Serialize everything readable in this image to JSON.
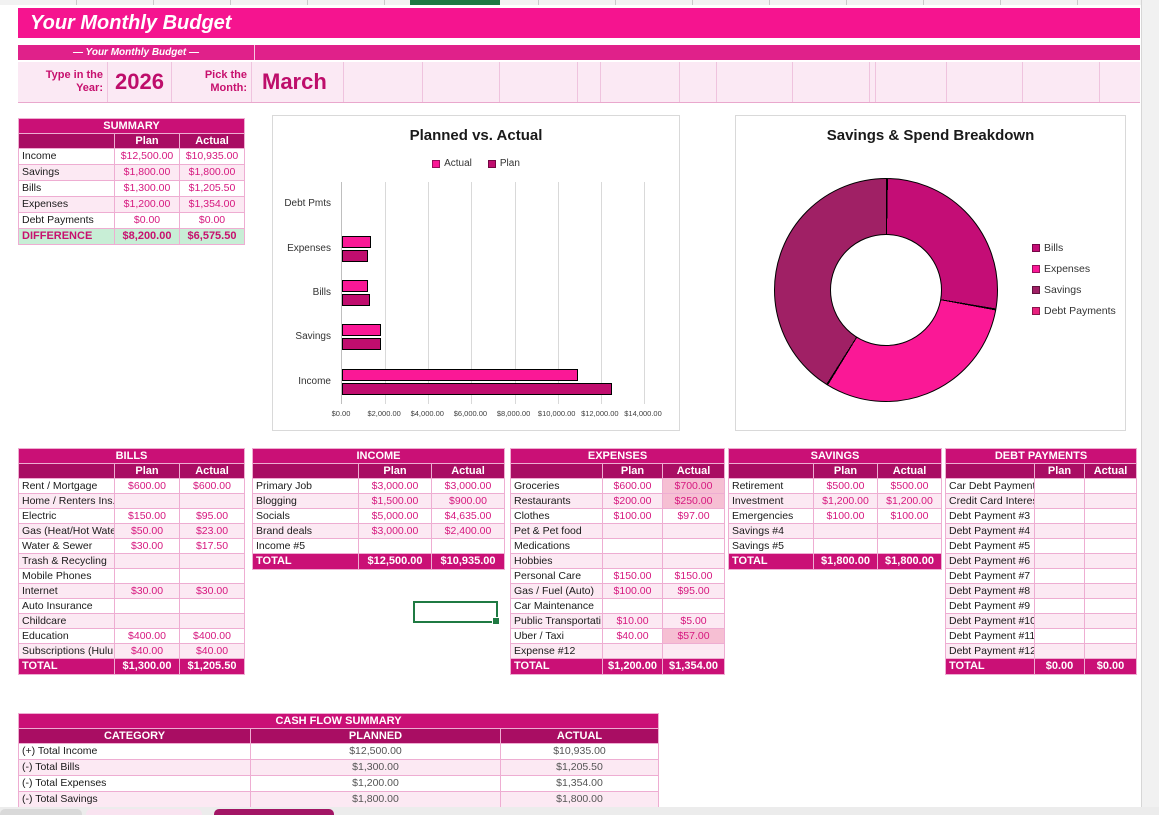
{
  "columns": {
    "plan": "Plan",
    "actual": "Actual"
  },
  "header": {
    "title": "Your Monthly Budget",
    "subtitle": "— Your Monthly Budget —",
    "year_label": "Type in the Year:",
    "year_value": "2026",
    "month_label": "Pick the Month:",
    "month_value": "March"
  },
  "summary": {
    "title": "SUMMARY",
    "rows": [
      {
        "label": "Income",
        "plan": "$12,500.00",
        "actual": "$10,935.00"
      },
      {
        "label": "Savings",
        "plan": "$1,800.00",
        "actual": "$1,800.00"
      },
      {
        "label": "Bills",
        "plan": "$1,300.00",
        "actual": "$1,205.50"
      },
      {
        "label": "Expenses",
        "plan": "$1,200.00",
        "actual": "$1,354.00"
      },
      {
        "label": "Debt Payments",
        "plan": "$0.00",
        "actual": "$0.00"
      }
    ],
    "difference": {
      "label": "DIFFERENCE",
      "plan": "$8,200.00",
      "actual": "$6,575.50"
    }
  },
  "chart_data": [
    {
      "type": "bar",
      "orientation": "horizontal",
      "title": "Planned vs. Actual",
      "categories": [
        "Debt Pmts",
        "Expenses",
        "Bills",
        "Savings",
        "Income"
      ],
      "series": [
        {
          "name": "Actual",
          "color": "#fa1896",
          "values": [
            0,
            1354,
            1205.5,
            1800,
            10935
          ]
        },
        {
          "name": "Plan",
          "color": "#c00d6e",
          "values": [
            0,
            1200,
            1300,
            1800,
            12500
          ]
        }
      ],
      "xlim": [
        0,
        14000
      ],
      "x_ticks": [
        "$0.00",
        "$2,000.00",
        "$4,000.00",
        "$6,000.00",
        "$8,000.00",
        "$10,000.00",
        "$12,000.00",
        "$14,000.00"
      ],
      "legend_position": "top",
      "grid": true
    },
    {
      "type": "pie",
      "donut": true,
      "title": "Savings & Spend Breakdown",
      "labels": [
        "Bills",
        "Expenses",
        "Savings",
        "Debt Payments"
      ],
      "values": [
        1205.5,
        1354,
        1800,
        0
      ],
      "colors": [
        "#c40d76",
        "#fa1896",
        "#a02065",
        "#e8217e"
      ],
      "legend_position": "right"
    }
  ],
  "tables": {
    "bills": {
      "title": "BILLS",
      "rows": [
        {
          "label": "Rent / Mortgage",
          "plan": "$600.00",
          "actual": "$600.00"
        },
        {
          "label": "Home / Renters Ins.",
          "plan": "",
          "actual": ""
        },
        {
          "label": "Electric",
          "plan": "$150.00",
          "actual": "$95.00"
        },
        {
          "label": "Gas (Heat/Hot Wate",
          "plan": "$50.00",
          "actual": "$23.00"
        },
        {
          "label": "Water & Sewer",
          "plan": "$30.00",
          "actual": "$17.50"
        },
        {
          "label": "Trash & Recycling",
          "plan": "",
          "actual": ""
        },
        {
          "label": "Mobile Phones",
          "plan": "",
          "actual": ""
        },
        {
          "label": "Internet",
          "plan": "$30.00",
          "actual": "$30.00"
        },
        {
          "label": "Auto Insurance",
          "plan": "",
          "actual": ""
        },
        {
          "label": "Childcare",
          "plan": "",
          "actual": ""
        },
        {
          "label": "Education",
          "plan": "$400.00",
          "actual": "$400.00"
        },
        {
          "label": "Subscriptions (Hulu",
          "plan": "$40.00",
          "actual": "$40.00"
        }
      ],
      "total": {
        "label": "TOTAL",
        "plan": "$1,300.00",
        "actual": "$1,205.50"
      }
    },
    "income": {
      "title": "INCOME",
      "rows": [
        {
          "label": "Primary Job",
          "plan": "$3,000.00",
          "actual": "$3,000.00"
        },
        {
          "label": "Blogging",
          "plan": "$1,500.00",
          "actual": "$900.00"
        },
        {
          "label": "Socials",
          "plan": "$5,000.00",
          "actual": "$4,635.00"
        },
        {
          "label": "Brand deals",
          "plan": "$3,000.00",
          "actual": "$2,400.00"
        },
        {
          "label": "Income #5",
          "plan": "",
          "actual": ""
        }
      ],
      "total": {
        "label": "TOTAL",
        "plan": "$12,500.00",
        "actual": "$10,935.00"
      }
    },
    "expenses": {
      "title": "EXPENSES",
      "rows": [
        {
          "label": "Groceries",
          "plan": "$600.00",
          "actual": "$700.00",
          "hl": true
        },
        {
          "label": "Restaurants",
          "plan": "$200.00",
          "actual": "$250.00",
          "hl": true
        },
        {
          "label": "Clothes",
          "plan": "$100.00",
          "actual": "$97.00"
        },
        {
          "label": "Pet & Pet food",
          "plan": "",
          "actual": ""
        },
        {
          "label": "Medications",
          "plan": "",
          "actual": ""
        },
        {
          "label": "Hobbies",
          "plan": "",
          "actual": ""
        },
        {
          "label": "Personal Care",
          "plan": "$150.00",
          "actual": "$150.00"
        },
        {
          "label": "Gas / Fuel (Auto)",
          "plan": "$100.00",
          "actual": "$95.00"
        },
        {
          "label": "Car Maintenance",
          "plan": "",
          "actual": ""
        },
        {
          "label": "Public Transportati",
          "plan": "$10.00",
          "actual": "$5.00"
        },
        {
          "label": "Uber / Taxi",
          "plan": "$40.00",
          "actual": "$57.00",
          "hl": true
        },
        {
          "label": "Expense #12",
          "plan": "",
          "actual": ""
        }
      ],
      "total": {
        "label": "TOTAL",
        "plan": "$1,200.00",
        "actual": "$1,354.00"
      }
    },
    "savings": {
      "title": "SAVINGS",
      "rows": [
        {
          "label": "Retirement",
          "plan": "$500.00",
          "actual": "$500.00"
        },
        {
          "label": "Investment",
          "plan": "$1,200.00",
          "actual": "$1,200.00"
        },
        {
          "label": "Emergencies",
          "plan": "$100.00",
          "actual": "$100.00"
        },
        {
          "label": "Savings #4",
          "plan": "",
          "actual": ""
        },
        {
          "label": "Savings #5",
          "plan": "",
          "actual": ""
        }
      ],
      "total": {
        "label": "TOTAL",
        "plan": "$1,800.00",
        "actual": "$1,800.00"
      }
    },
    "debt": {
      "title": "DEBT PAYMENTS",
      "rows": [
        {
          "label": "Car Debt Payment",
          "plan": "",
          "actual": ""
        },
        {
          "label": "Credit Card Interests",
          "plan": "",
          "actual": ""
        },
        {
          "label": "Debt Payment #3",
          "plan": "",
          "actual": ""
        },
        {
          "label": "Debt Payment #4",
          "plan": "",
          "actual": ""
        },
        {
          "label": "Debt Payment #5",
          "plan": "",
          "actual": ""
        },
        {
          "label": "Debt Payment #6",
          "plan": "",
          "actual": ""
        },
        {
          "label": "Debt Payment #7",
          "plan": "",
          "actual": ""
        },
        {
          "label": "Debt Payment #8",
          "plan": "",
          "actual": ""
        },
        {
          "label": "Debt Payment #9",
          "plan": "",
          "actual": ""
        },
        {
          "label": "Debt Payment #10",
          "plan": "",
          "actual": ""
        },
        {
          "label": "Debt Payment #11",
          "plan": "",
          "actual": ""
        },
        {
          "label": "Debt Payment #12",
          "plan": "",
          "actual": ""
        }
      ],
      "total": {
        "label": "TOTAL",
        "plan": "$0.00",
        "actual": "$0.00"
      }
    }
  },
  "cash_flow": {
    "title": "CASH FLOW SUMMARY",
    "columns": {
      "category": "CATEGORY",
      "planned": "PLANNED",
      "actual": "ACTUAL"
    },
    "rows": [
      {
        "label": "(+) Total Income",
        "plan": "$12,500.00",
        "actual": "$10,935.00"
      },
      {
        "label": "(-) Total Bills",
        "plan": "$1,300.00",
        "actual": "$1,205.50"
      },
      {
        "label": "(-) Total Expenses",
        "plan": "$1,200.00",
        "actual": "$1,354.00"
      },
      {
        "label": "(-) Total Savings",
        "plan": "$1,800.00",
        "actual": "$1,800.00"
      }
    ]
  }
}
